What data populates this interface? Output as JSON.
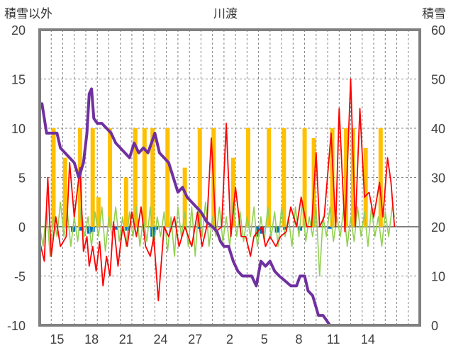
{
  "chart_data": {
    "type": "line",
    "title": "川渡",
    "ylabel_left": "積雪以外",
    "ylabel_right": "積雪",
    "y_left": {
      "min": -10,
      "max": 20,
      "ticks": [
        "20",
        "15",
        "10",
        "5",
        "0",
        "-5",
        "-10"
      ]
    },
    "y_right": {
      "min": 0,
      "max": 60,
      "ticks": [
        "60",
        "50",
        "40",
        "30",
        "20",
        "10",
        "0"
      ]
    },
    "x": {
      "min": 0,
      "max": 33,
      "ticks": [
        "15",
        "18",
        "21",
        "24",
        "27",
        "2",
        "5",
        "8",
        "11",
        "14"
      ],
      "tick_positions": [
        1.5,
        4.5,
        7.5,
        10.5,
        13.5,
        16.5,
        19.5,
        22.5,
        25.5,
        28.5
      ]
    },
    "grid": true,
    "colors": {
      "temperature": "#ff0000",
      "snow_depth": "#7030a0",
      "sunshine": "#ffc000",
      "precipitation": "#0070c0",
      "wind": "#92d050"
    },
    "series": {
      "temperature": [
        [
          0,
          -1.5
        ],
        [
          0.4,
          -3.5
        ],
        [
          0.7,
          5
        ],
        [
          1,
          -3
        ],
        [
          1.4,
          1
        ],
        [
          1.8,
          -2
        ],
        [
          2.3,
          -1
        ],
        [
          2.6,
          6.5
        ],
        [
          3,
          1
        ],
        [
          3.5,
          6
        ],
        [
          3.8,
          -2.5
        ],
        [
          4.1,
          -1
        ],
        [
          4.3,
          -4
        ],
        [
          4.6,
          -2
        ],
        [
          4.9,
          -4.5
        ],
        [
          5.2,
          -1.5
        ],
        [
          5.5,
          -6
        ],
        [
          5.8,
          -3
        ],
        [
          6.1,
          -5
        ],
        [
          6.4,
          0.5
        ],
        [
          6.8,
          -4
        ],
        [
          7.2,
          0
        ],
        [
          7.6,
          -2
        ],
        [
          8,
          1.5
        ],
        [
          8.4,
          -1
        ],
        [
          8.8,
          2
        ],
        [
          9.2,
          -2
        ],
        [
          9.6,
          -3
        ],
        [
          9.9,
          -1
        ],
        [
          10.3,
          -7.5
        ],
        [
          10.8,
          0
        ],
        [
          11.2,
          -1
        ],
        [
          11.7,
          1
        ],
        [
          12.1,
          -2
        ],
        [
          12.6,
          0
        ],
        [
          13.2,
          -2
        ],
        [
          13.7,
          1.5
        ],
        [
          14.1,
          -2
        ],
        [
          14.5,
          0
        ],
        [
          14.9,
          9
        ],
        [
          15.3,
          -0.5
        ],
        [
          15.8,
          0
        ],
        [
          16.2,
          10.5
        ],
        [
          16.6,
          -1
        ],
        [
          17,
          4
        ],
        [
          17.5,
          -1
        ],
        [
          17.9,
          -1
        ],
        [
          18.3,
          -3
        ],
        [
          18.6,
          -1
        ],
        [
          18.9,
          -0.5
        ],
        [
          19.3,
          0
        ],
        [
          19.6,
          -2
        ],
        [
          20,
          -1
        ],
        [
          20.5,
          -2
        ],
        [
          20.9,
          -1
        ],
        [
          21.4,
          -0.5
        ],
        [
          21.8,
          2
        ],
        [
          22.3,
          0
        ],
        [
          22.7,
          3
        ],
        [
          23.2,
          0
        ],
        [
          23.6,
          0
        ],
        [
          24,
          7.5
        ],
        [
          24.3,
          0
        ],
        [
          24.7,
          1
        ],
        [
          25.3,
          9.5
        ],
        [
          25.7,
          0
        ],
        [
          26,
          12
        ],
        [
          26.5,
          -0.5
        ],
        [
          27,
          15
        ],
        [
          27.4,
          0
        ],
        [
          27.8,
          12
        ],
        [
          28.2,
          3
        ],
        [
          28.6,
          3.5
        ],
        [
          29,
          1
        ],
        [
          29.5,
          4.5
        ],
        [
          29.8,
          1
        ],
        [
          30.2,
          7
        ],
        [
          30.5,
          4.5
        ],
        [
          30.8,
          0
        ]
      ],
      "snow_depth": [
        [
          0,
          44
        ],
        [
          0.2,
          45
        ],
        [
          0.4,
          42
        ],
        [
          0.6,
          39
        ],
        [
          1.5,
          39
        ],
        [
          1.8,
          36
        ],
        [
          2.2,
          35
        ],
        [
          2.6,
          34
        ],
        [
          3,
          33
        ],
        [
          3.4,
          30
        ],
        [
          3.8,
          33
        ],
        [
          4.1,
          39
        ],
        [
          4.3,
          47
        ],
        [
          4.5,
          48
        ],
        [
          4.7,
          42
        ],
        [
          5,
          41
        ],
        [
          5.4,
          41
        ],
        [
          5.8,
          40
        ],
        [
          6.2,
          39
        ],
        [
          6.6,
          37
        ],
        [
          7,
          36
        ],
        [
          7.4,
          35
        ],
        [
          7.8,
          34
        ],
        [
          8.2,
          37
        ],
        [
          8.6,
          35
        ],
        [
          9,
          36
        ],
        [
          9.4,
          35
        ],
        [
          9.7,
          37
        ],
        [
          10,
          39
        ],
        [
          10.4,
          35
        ],
        [
          10.8,
          34
        ],
        [
          11.2,
          33
        ],
        [
          11.6,
          30
        ],
        [
          12,
          27
        ],
        [
          12.4,
          28
        ],
        [
          12.8,
          26
        ],
        [
          13.2,
          25
        ],
        [
          13.6,
          24
        ],
        [
          14,
          23
        ],
        [
          14.5,
          21
        ],
        [
          15,
          20
        ],
        [
          15.4,
          19
        ],
        [
          15.7,
          17
        ],
        [
          16,
          16
        ],
        [
          16.4,
          16
        ],
        [
          16.8,
          13
        ],
        [
          17.2,
          11
        ],
        [
          17.6,
          10
        ],
        [
          18,
          10
        ],
        [
          18.4,
          10
        ],
        [
          18.8,
          8
        ],
        [
          19.2,
          13
        ],
        [
          19.6,
          12
        ],
        [
          20,
          13
        ],
        [
          20.4,
          11
        ],
        [
          20.8,
          10
        ],
        [
          21.3,
          9
        ],
        [
          21.8,
          8
        ],
        [
          22.3,
          8
        ],
        [
          22.6,
          10
        ],
        [
          23,
          10
        ],
        [
          23.3,
          7
        ],
        [
          23.7,
          6
        ],
        [
          24.2,
          2
        ],
        [
          24.6,
          2
        ],
        [
          25.2,
          0
        ],
        [
          33,
          0
        ]
      ],
      "sunshine": [
        [
          1.2,
          10
        ],
        [
          2.2,
          7
        ],
        [
          3.5,
          10
        ],
        [
          4.6,
          10
        ],
        [
          5.1,
          3
        ],
        [
          6.1,
          10
        ],
        [
          7.5,
          5
        ],
        [
          8.3,
          10
        ],
        [
          9.1,
          10
        ],
        [
          9.8,
          10
        ],
        [
          11.1,
          10
        ],
        [
          12.6,
          6
        ],
        [
          13.9,
          10
        ],
        [
          15.1,
          10
        ],
        [
          16.8,
          7
        ],
        [
          18.1,
          10
        ],
        [
          19.9,
          10
        ],
        [
          21.2,
          10
        ],
        [
          23,
          10
        ],
        [
          23.8,
          9
        ],
        [
          25.4,
          10
        ],
        [
          26.6,
          10
        ],
        [
          27.2,
          10
        ],
        [
          28.3,
          8
        ],
        [
          29.6,
          10
        ]
      ],
      "precipitation": [
        [
          2.9,
          -0.5
        ],
        [
          3.6,
          -0.4
        ],
        [
          4.3,
          -0.7
        ],
        [
          4.6,
          -0.5
        ],
        [
          6.6,
          -0.3
        ],
        [
          7.6,
          -0.4
        ],
        [
          9.8,
          -1
        ],
        [
          10.1,
          -0.3
        ],
        [
          13.9,
          -0.2
        ],
        [
          18.9,
          -1
        ],
        [
          19.3,
          -0.7
        ],
        [
          20.6,
          -0.6
        ],
        [
          21.3,
          -0.3
        ],
        [
          22.6,
          -0.4
        ],
        [
          25.2,
          -0.2
        ]
      ],
      "wind": [
        [
          0,
          0
        ],
        [
          0.3,
          -2
        ],
        [
          0.6,
          2
        ],
        [
          0.9,
          -3
        ],
        [
          1.2,
          1
        ],
        [
          1.5,
          -1
        ],
        [
          1.8,
          2.5
        ],
        [
          2.1,
          -1
        ],
        [
          2.4,
          1.5
        ],
        [
          2.7,
          -2
        ],
        [
          3,
          1
        ],
        [
          3.3,
          -1.5
        ],
        [
          3.6,
          2
        ],
        [
          3.9,
          -1
        ],
        [
          4.2,
          1
        ],
        [
          4.5,
          -2
        ],
        [
          4.8,
          1.5
        ],
        [
          5.1,
          -1
        ],
        [
          5.4,
          2
        ],
        [
          5.7,
          -2.5
        ],
        [
          6,
          1
        ],
        [
          6.3,
          -1
        ],
        [
          6.6,
          2
        ],
        [
          6.9,
          -1.5
        ],
        [
          7.2,
          1
        ],
        [
          7.5,
          -2
        ],
        [
          7.8,
          1.5
        ],
        [
          8.1,
          -1
        ],
        [
          8.4,
          2
        ],
        [
          8.7,
          -2
        ],
        [
          9,
          1
        ],
        [
          9.3,
          -1.5
        ],
        [
          9.6,
          2
        ],
        [
          9.9,
          -2
        ],
        [
          10.2,
          1
        ],
        [
          10.5,
          -1
        ],
        [
          10.8,
          1.5
        ],
        [
          11.1,
          -2.5
        ],
        [
          11.4,
          1
        ],
        [
          11.7,
          -3
        ],
        [
          12,
          2
        ],
        [
          12.3,
          -1
        ],
        [
          12.6,
          1.5
        ],
        [
          12.9,
          -2
        ],
        [
          13.2,
          2
        ],
        [
          13.5,
          -3
        ],
        [
          13.8,
          2
        ],
        [
          14.1,
          -1
        ],
        [
          14.4,
          2.5
        ],
        [
          14.7,
          -2
        ],
        [
          15,
          1
        ],
        [
          15.3,
          -1
        ],
        [
          15.6,
          2
        ],
        [
          15.9,
          -1.5
        ],
        [
          16.2,
          1
        ],
        [
          16.5,
          -2
        ],
        [
          16.8,
          2.5
        ],
        [
          17.1,
          -1
        ],
        [
          17.4,
          1.5
        ],
        [
          17.7,
          -1.5
        ],
        [
          18,
          1
        ],
        [
          18.3,
          -1
        ],
        [
          18.6,
          2
        ],
        [
          18.9,
          -2
        ],
        [
          19.2,
          1
        ],
        [
          19.5,
          -1.5
        ],
        [
          19.8,
          2
        ],
        [
          20.1,
          -1
        ],
        [
          20.4,
          1.5
        ],
        [
          20.7,
          -2
        ],
        [
          21,
          2
        ],
        [
          21.3,
          -1
        ],
        [
          21.6,
          1
        ],
        [
          21.9,
          -2
        ],
        [
          22.2,
          2
        ],
        [
          22.5,
          -1
        ],
        [
          22.8,
          2.5
        ],
        [
          23.1,
          -1.5
        ],
        [
          23.4,
          1
        ],
        [
          23.7,
          -1
        ],
        [
          24,
          2
        ],
        [
          24.3,
          -5
        ],
        [
          24.6,
          1
        ],
        [
          24.9,
          -1
        ],
        [
          25.2,
          2
        ],
        [
          25.5,
          -1.5
        ],
        [
          25.8,
          1
        ],
        [
          26.1,
          -1
        ],
        [
          26.4,
          2
        ],
        [
          26.7,
          -2
        ],
        [
          27,
          1
        ],
        [
          27.3,
          -1.5
        ],
        [
          27.6,
          2
        ],
        [
          27.9,
          -1
        ],
        [
          28.2,
          1.5
        ],
        [
          28.5,
          -2
        ],
        [
          28.8,
          2
        ],
        [
          29.1,
          -1
        ],
        [
          29.4,
          1
        ],
        [
          29.7,
          -2
        ],
        [
          30,
          1.5
        ],
        [
          30.3,
          -1
        ],
        [
          30.6,
          2
        ],
        [
          30.8,
          1
        ]
      ]
    }
  }
}
